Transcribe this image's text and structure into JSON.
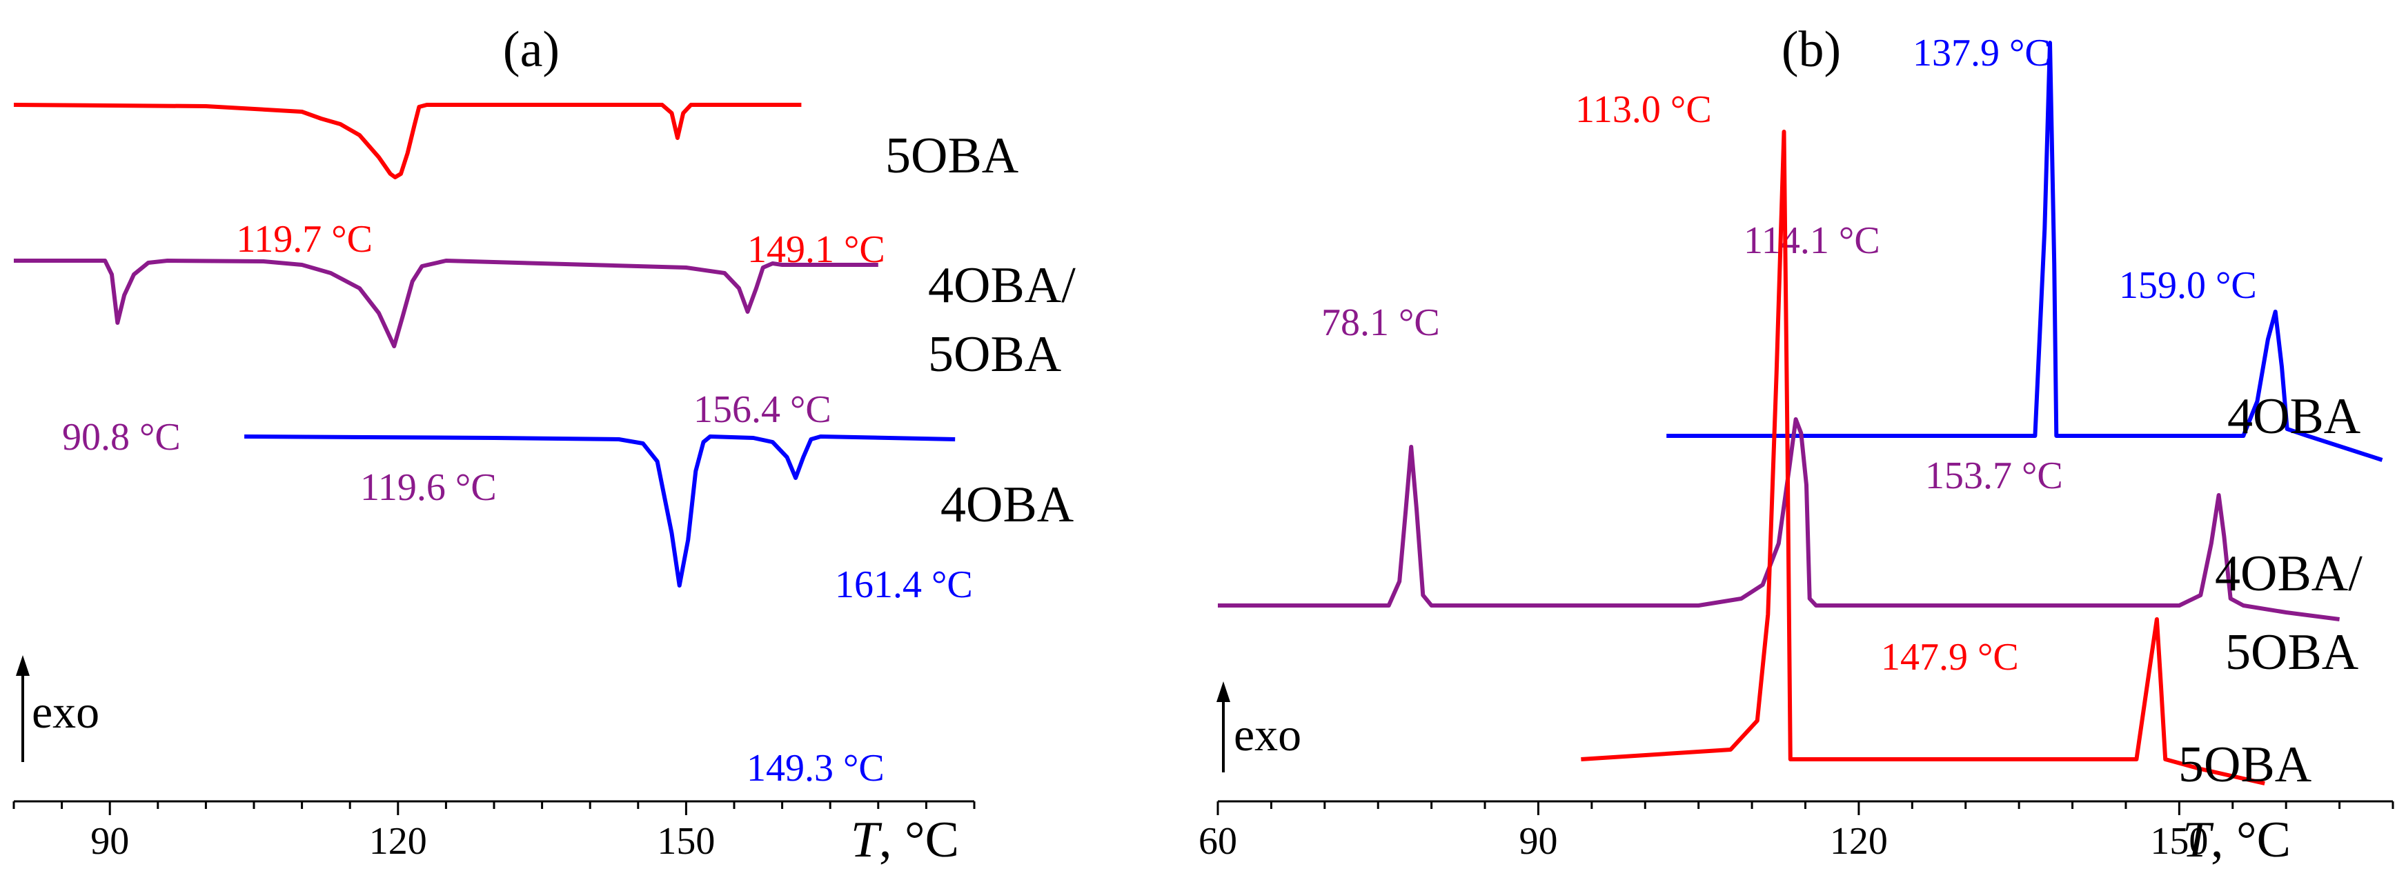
{
  "chart_data": [
    {
      "type": "line",
      "panel_label": "(a)",
      "xlabel_var": "T",
      "xlabel_unit": ", °C",
      "xlim": [
        80,
        180
      ],
      "xticks": [
        90,
        120,
        150
      ],
      "exo_label": "exo",
      "series": [
        {
          "name": "5OBA",
          "label": "5OBA",
          "color": "#ff0000",
          "points": [
            [
              80,
              0
            ],
            [
              100,
              -0.1
            ],
            [
              110,
              -0.5
            ],
            [
              112,
              -1.0
            ],
            [
              114,
              -1.4
            ],
            [
              116,
              -2.2
            ],
            [
              118,
              -3.8
            ],
            [
              119.2,
              -5.0
            ],
            [
              119.7,
              -5.25
            ],
            [
              120.3,
              -5.0
            ],
            [
              121,
              -3.5
            ],
            [
              121.7,
              -1.5
            ],
            [
              122.2,
              -0.15
            ],
            [
              123,
              0
            ],
            [
              147.5,
              0
            ],
            [
              148.5,
              -0.6
            ],
            [
              149.1,
              -2.4
            ],
            [
              149.7,
              -0.6
            ],
            [
              150.5,
              0
            ],
            [
              162,
              0
            ]
          ],
          "peaks": [
            {
              "x": 119.7,
              "label": "119.7 °C"
            },
            {
              "x": 149.1,
              "label": "149.1 °C"
            }
          ]
        },
        {
          "name": "4OBA/5OBA",
          "label": [
            "4OBA/",
            "5OBA"
          ],
          "color": "#8b1a8b",
          "points": [
            [
              80,
              0
            ],
            [
              89.5,
              0
            ],
            [
              90.2,
              -1.0
            ],
            [
              90.8,
              -4.5
            ],
            [
              91.5,
              -2.5
            ],
            [
              92.5,
              -1.0
            ],
            [
              94,
              -0.15
            ],
            [
              96,
              0
            ],
            [
              106,
              -0.05
            ],
            [
              110,
              -0.3
            ],
            [
              113,
              -0.9
            ],
            [
              116,
              -2.0
            ],
            [
              118,
              -3.8
            ],
            [
              119.6,
              -6.2
            ],
            [
              120.5,
              -4.0
            ],
            [
              121.5,
              -1.5
            ],
            [
              122.5,
              -0.4
            ],
            [
              125,
              0
            ],
            [
              150,
              -0.5
            ],
            [
              154,
              -0.9
            ],
            [
              155.5,
              -2.0
            ],
            [
              156.4,
              -3.7
            ],
            [
              157.3,
              -2.0
            ],
            [
              158,
              -0.5
            ],
            [
              159,
              -0.2
            ],
            [
              160,
              -0.3
            ],
            [
              170,
              -0.3
            ]
          ],
          "peaks": [
            {
              "x": 90.8,
              "label": "90.8 °C"
            },
            {
              "x": 119.6,
              "label": "119.6 °C"
            },
            {
              "x": 156.4,
              "label": "156.4 °C"
            }
          ]
        },
        {
          "name": "4OBA",
          "label": "4OBA",
          "color": "#0000ff",
          "points": [
            [
              104,
              0
            ],
            [
              130,
              -0.1
            ],
            [
              143,
              -0.2
            ],
            [
              145.5,
              -0.5
            ],
            [
              147,
              -1.8
            ],
            [
              148.5,
              -7.0
            ],
            [
              149.3,
              -10.8
            ],
            [
              150.2,
              -7.5
            ],
            [
              151,
              -2.5
            ],
            [
              151.8,
              -0.4
            ],
            [
              152.5,
              0
            ],
            [
              157,
              -0.1
            ],
            [
              159,
              -0.4
            ],
            [
              160.5,
              -1.5
            ],
            [
              161.4,
              -3.0
            ],
            [
              162.2,
              -1.5
            ],
            [
              163,
              -0.2
            ],
            [
              164,
              0
            ],
            [
              178,
              -0.2
            ]
          ],
          "peaks": [
            {
              "x": 149.3,
              "label": "149.3 °C"
            },
            {
              "x": 161.4,
              "label": "161.4 °C"
            }
          ]
        }
      ]
    },
    {
      "type": "line",
      "panel_label": "(b)",
      "xlabel_var": "T",
      "xlabel_unit": ", °C",
      "xlim": [
        60,
        170
      ],
      "xticks": [
        60,
        90,
        120,
        150
      ],
      "exo_label": "exo",
      "series": [
        {
          "name": "4OBA",
          "label": "4OBA",
          "color": "#0000ff",
          "points": [
            [
              102,
              0
            ],
            [
              136.5,
              0
            ],
            [
              137.4,
              6
            ],
            [
              137.9,
              11.4
            ],
            [
              138.3,
              5
            ],
            [
              138.5,
              0
            ],
            [
              156,
              0
            ],
            [
              157.3,
              1.0
            ],
            [
              158.3,
              2.8
            ],
            [
              159,
              3.6
            ],
            [
              159.6,
              2.0
            ],
            [
              160.1,
              0.2
            ],
            [
              162,
              0
            ],
            [
              166,
              -0.4
            ],
            [
              169,
              -0.7
            ]
          ],
          "peaks": [
            {
              "x": 137.9,
              "label": "137.9 °C"
            },
            {
              "x": 159.0,
              "label": "159.0 °C"
            }
          ]
        },
        {
          "name": "4OBA/5OBA",
          "label": [
            "4OBA/",
            "5OBA"
          ],
          "color": "#8b1a8b",
          "points": [
            [
              60,
              0
            ],
            [
              76,
              0
            ],
            [
              77,
              0.7
            ],
            [
              77.6,
              2.8
            ],
            [
              78.1,
              4.6
            ],
            [
              78.6,
              2.8
            ],
            [
              79.2,
              0.3
            ],
            [
              80,
              0
            ],
            [
              105,
              0
            ],
            [
              109,
              0.2
            ],
            [
              111,
              0.6
            ],
            [
              112.5,
              1.8
            ],
            [
              113.5,
              4.0
            ],
            [
              114.1,
              5.4
            ],
            [
              114.6,
              5.0
            ],
            [
              115.1,
              3.5
            ],
            [
              115.4,
              0.2
            ],
            [
              116,
              0
            ],
            [
              150,
              0
            ],
            [
              152,
              0.3
            ],
            [
              153,
              1.8
            ],
            [
              153.7,
              3.2
            ],
            [
              154.2,
              2.0
            ],
            [
              154.8,
              0.2
            ],
            [
              156,
              0
            ],
            [
              160,
              -0.2
            ],
            [
              165,
              -0.4
            ]
          ],
          "peaks": [
            {
              "x": 78.1,
              "label": "78.1 °C"
            },
            {
              "x": 114.1,
              "label": "114.1 °C"
            },
            {
              "x": 153.7,
              "label": "153.7 °C"
            }
          ]
        },
        {
          "name": "5OBA",
          "label": "5OBA",
          "color": "#ff0000",
          "points": [
            [
              94,
              0
            ],
            [
              108,
              0.2
            ],
            [
              110.5,
              0.8
            ],
            [
              111.5,
              3.0
            ],
            [
              112.3,
              8.0
            ],
            [
              113,
              13.0
            ],
            [
              113.3,
              7.0
            ],
            [
              113.6,
              0
            ],
            [
              146,
              0
            ],
            [
              147.3,
              2.0
            ],
            [
              147.9,
              2.9
            ],
            [
              148.3,
              1.5
            ],
            [
              148.7,
              0
            ],
            [
              152,
              -0.2
            ],
            [
              158,
              -0.5
            ]
          ],
          "peaks": [
            {
              "x": 113.0,
              "label": "113.0 °C"
            },
            {
              "x": 147.9,
              "label": "147.9 °C"
            }
          ]
        }
      ]
    }
  ]
}
